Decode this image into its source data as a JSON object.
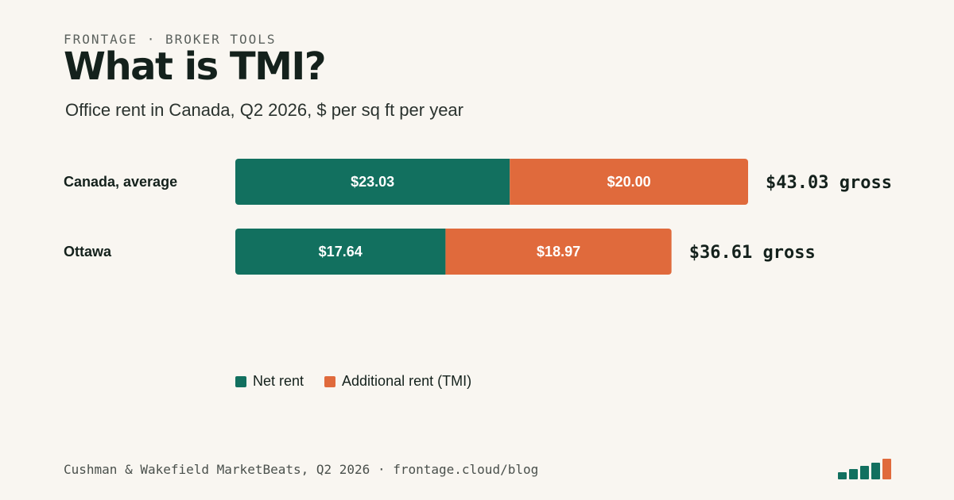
{
  "header": {
    "eyebrow": "FRONTAGE · BROKER TOOLS",
    "title": "What is TMI?",
    "subtitle": "Office rent in Canada, Q2 2026, $ per sq ft per year"
  },
  "colors": {
    "net_rent": "#12705f",
    "tmi": "#e06a3c",
    "background": "#f9f6f1",
    "text": "#14211c"
  },
  "chart_data": {
    "type": "bar",
    "orientation": "horizontal",
    "stacked": true,
    "categories": [
      "Canada, average",
      "Ottawa"
    ],
    "series": [
      {
        "name": "Net rent",
        "values": [
          23.03,
          17.64
        ],
        "labels": [
          "$23.03",
          "$17.64"
        ]
      },
      {
        "name": "Additional rent (TMI)",
        "values": [
          20.0,
          18.97
        ],
        "labels": [
          "$20.00",
          "$18.97"
        ]
      }
    ],
    "totals": [
      43.03,
      36.61
    ],
    "total_labels": [
      "$43.03 gross",
      "$36.61 gross"
    ],
    "title": "",
    "xlabel": "",
    "ylabel": "",
    "xlim": [
      0,
      43.03
    ],
    "grid": false,
    "legend_position": "bottom-left"
  },
  "legend": {
    "items": [
      {
        "label": "Net rent",
        "color": "#12705f"
      },
      {
        "label": "Additional rent (TMI)",
        "color": "#e06a3c"
      }
    ]
  },
  "footer": {
    "source": "Cushman & Wakefield MarketBeats, Q2 2026 · frontage.cloud/blog",
    "logo_icon": "bar-chart-logo-icon"
  }
}
